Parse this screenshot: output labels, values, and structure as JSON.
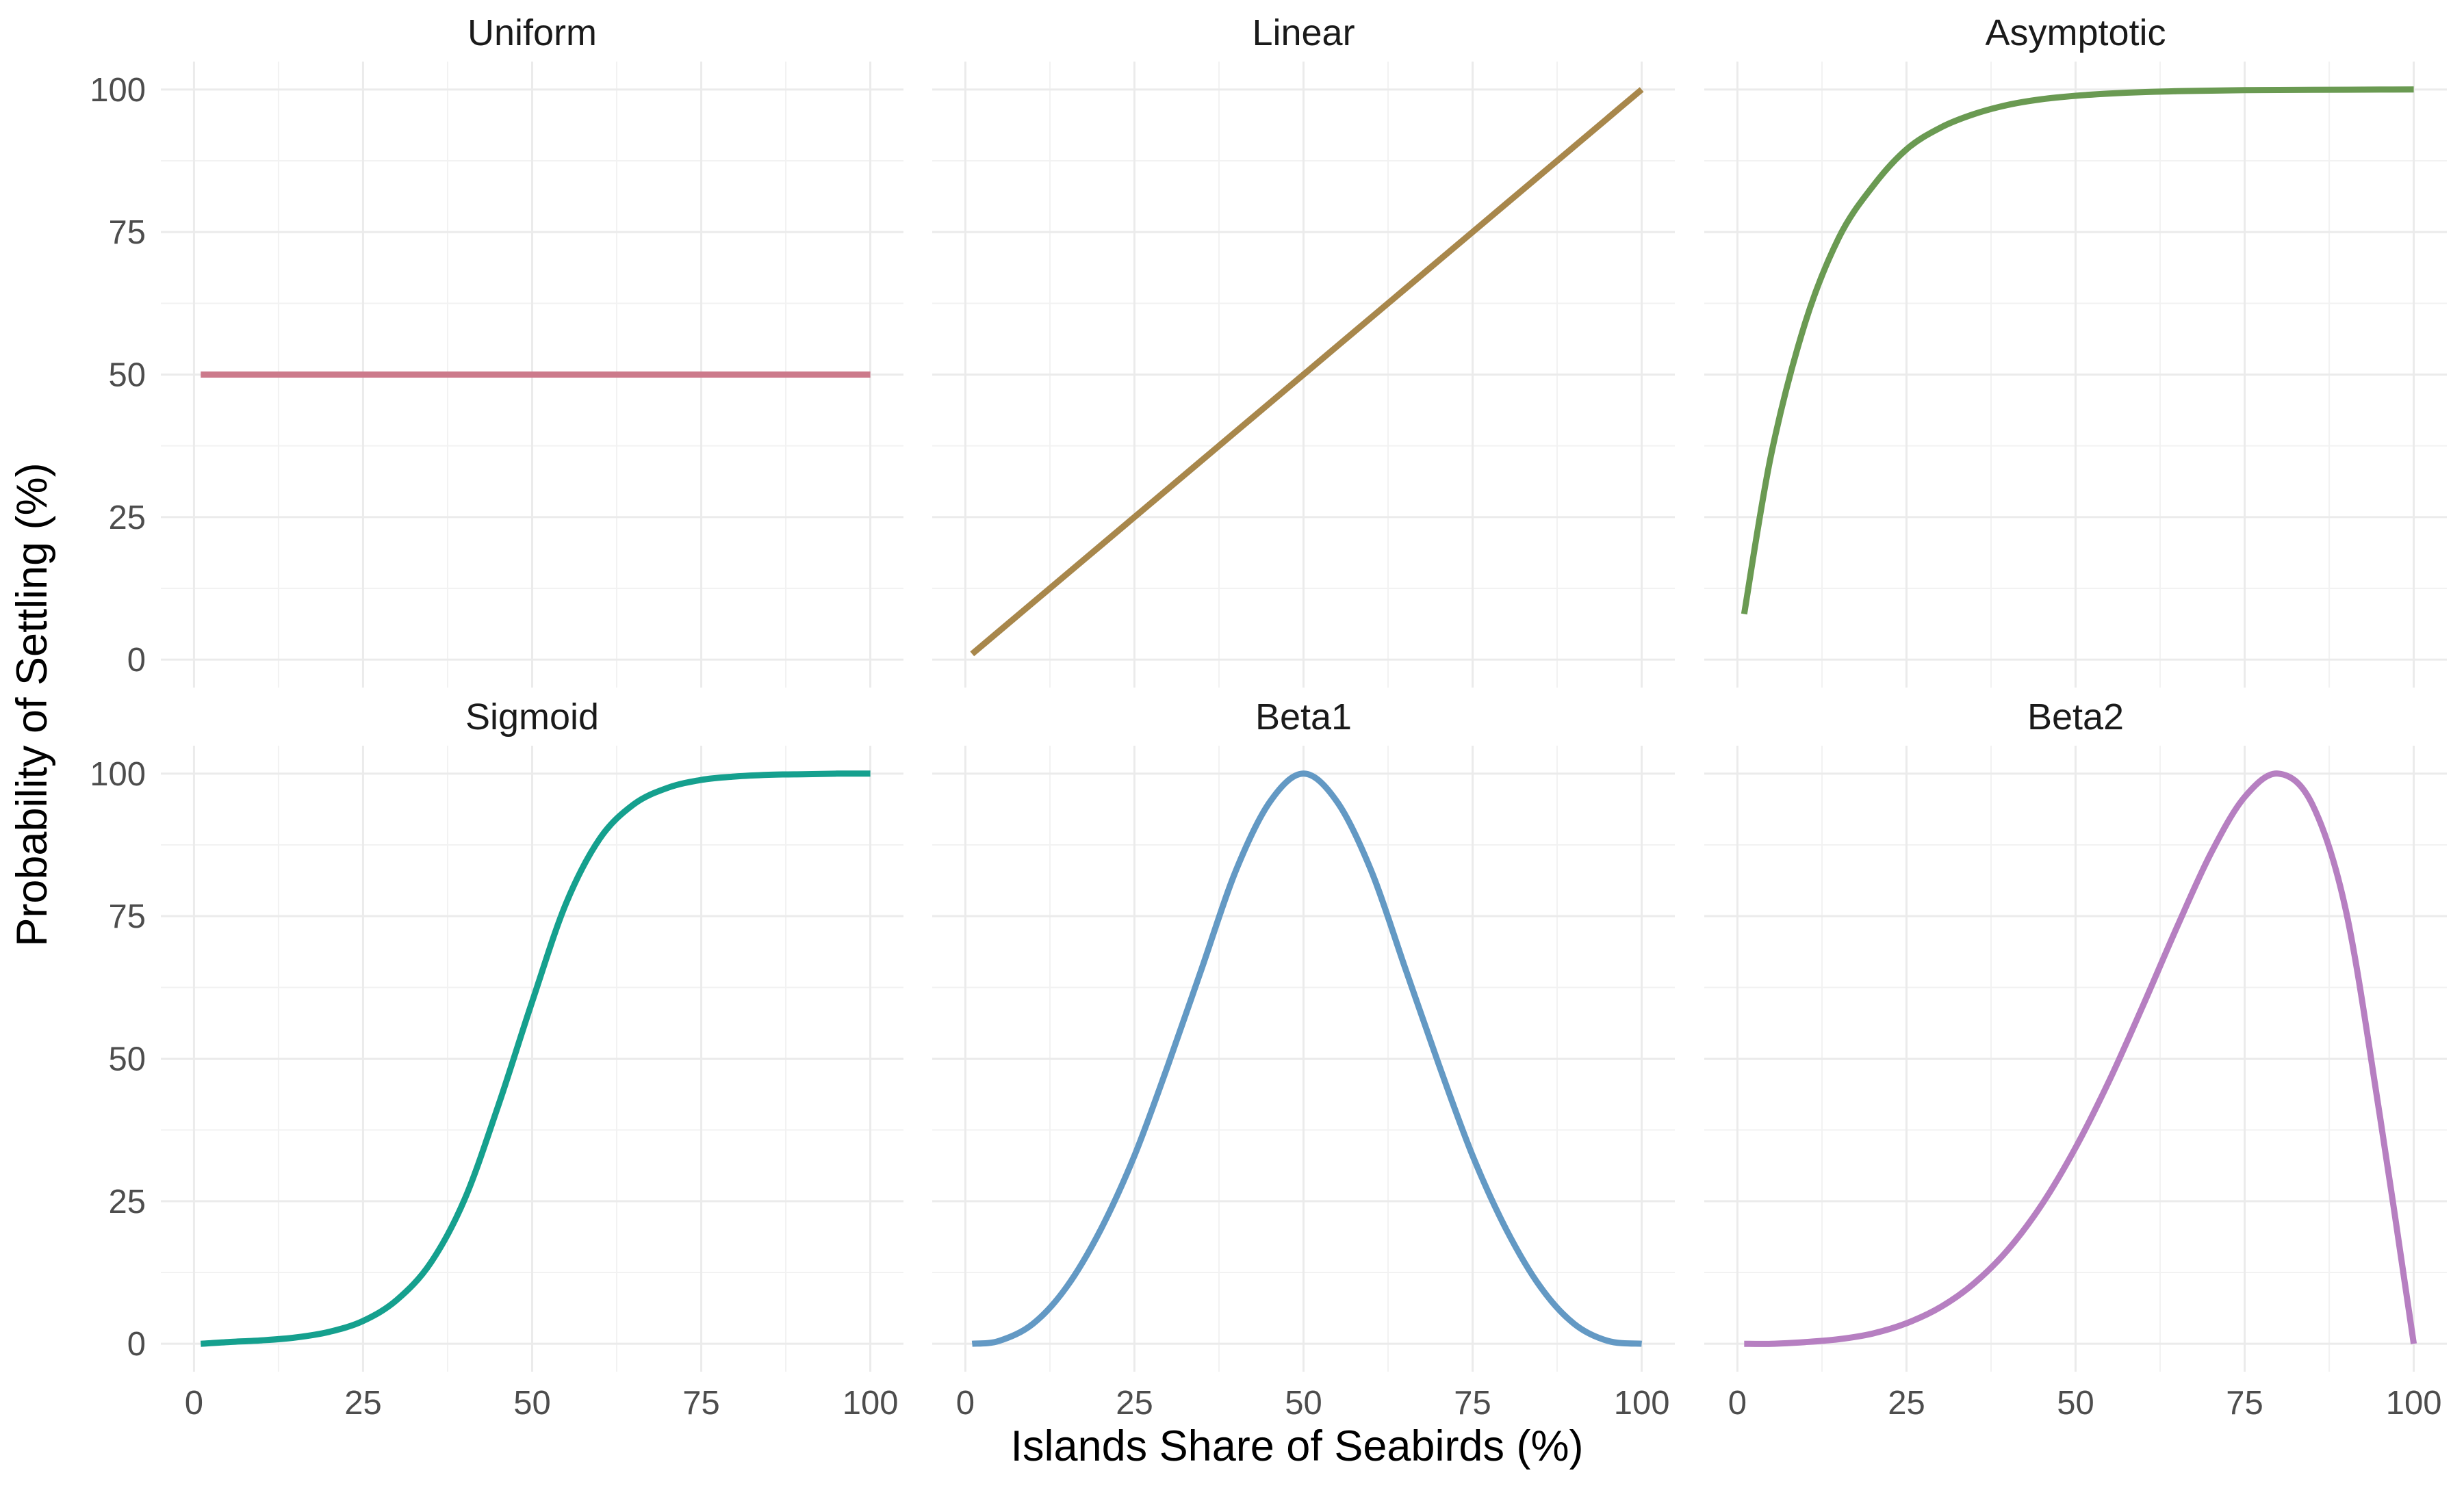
{
  "chart_data": {
    "type": "line",
    "layout": "facet-grid",
    "xlabel": "Islands Share of Seabirds (%)",
    "ylabel": "Probability of Settling (%)",
    "xlim": [
      0,
      100
    ],
    "ylim": [
      0,
      100
    ],
    "x_ticks": [
      0,
      25,
      50,
      75,
      100
    ],
    "y_ticks": [
      0,
      25,
      50,
      75,
      100
    ],
    "grid": true,
    "legend": "none",
    "x": [
      1,
      5,
      10,
      15,
      20,
      25,
      30,
      35,
      40,
      45,
      50,
      55,
      60,
      65,
      70,
      75,
      80,
      85,
      90,
      95,
      100
    ],
    "panels": [
      {
        "title": "Uniform",
        "color": "#CC7A8B",
        "values": [
          50,
          50,
          50,
          50,
          50,
          50,
          50,
          50,
          50,
          50,
          50,
          50,
          50,
          50,
          50,
          50,
          50,
          50,
          50,
          50,
          50
        ]
      },
      {
        "title": "Linear",
        "color": "#A8874B",
        "values": [
          1,
          5,
          10,
          15,
          20,
          25,
          30,
          35,
          40,
          45,
          50,
          55,
          60,
          65,
          70,
          75,
          80,
          85,
          90,
          95,
          100
        ]
      },
      {
        "title": "Asymptotic",
        "color": "#6A9A52",
        "values": [
          8,
          36,
          59,
          74,
          83,
          89.5,
          93.3,
          95.7,
          97.3,
          98.3,
          98.9,
          99.3,
          99.55,
          99.7,
          99.8,
          99.88,
          99.92,
          99.95,
          99.97,
          99.99,
          100
        ]
      },
      {
        "title": "Sigmoid",
        "color": "#15A08E",
        "values": [
          0,
          0.3,
          0.6,
          1.1,
          2.1,
          4,
          7.7,
          14.2,
          25.3,
          41.8,
          60,
          77.2,
          88.6,
          94.6,
          97.5,
          98.9,
          99.5,
          99.8,
          99.9,
          100,
          100
        ]
      },
      {
        "title": "Beta1",
        "color": "#6399C4",
        "values": [
          0,
          0.5,
          3.5,
          10,
          20,
          33,
          49,
          66,
          83,
          95,
          100,
          95,
          83,
          66,
          49,
          33,
          20,
          10,
          3.5,
          0.5,
          0
        ]
      },
      {
        "title": "Beta2",
        "color": "#B67FC1",
        "values": [
          0,
          0,
          0.3,
          0.8,
          1.8,
          3.6,
          6.4,
          10.6,
          16.5,
          24.4,
          34.4,
          46.2,
          59.4,
          73.1,
          86,
          95.9,
          100,
          94.6,
          75.8,
          39.9,
          0
        ]
      }
    ]
  }
}
